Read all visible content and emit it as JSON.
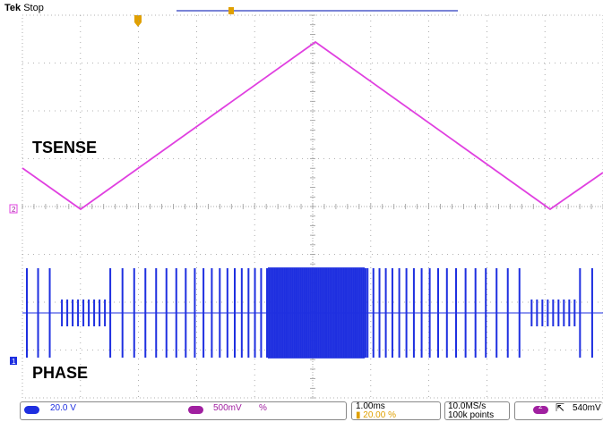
{
  "header": {
    "brand": "Tek",
    "state": "Stop"
  },
  "labels": {
    "upper_trace": "TSENSE",
    "lower_trace": "PHASE"
  },
  "markers": {
    "trigger_position": "T",
    "ch2_ground": "2",
    "ch1_ground": "1"
  },
  "status": {
    "ch1_scale": "20.0 V",
    "ch2_scale": "500mV",
    "ch2_unit": "%",
    "timebase": "1.00ms",
    "horiz_position": "20.00 %",
    "sample_rate": "10.0MS/s",
    "record_length": "100k points",
    "trigger_source": "2",
    "trigger_level": "540mV"
  },
  "colors": {
    "ch1": "#1e2fe0",
    "ch2": "#e040e0",
    "trigger": "#e0a000",
    "grid": "#9a9a9a",
    "ch2_badge": "#a020a0"
  }
}
